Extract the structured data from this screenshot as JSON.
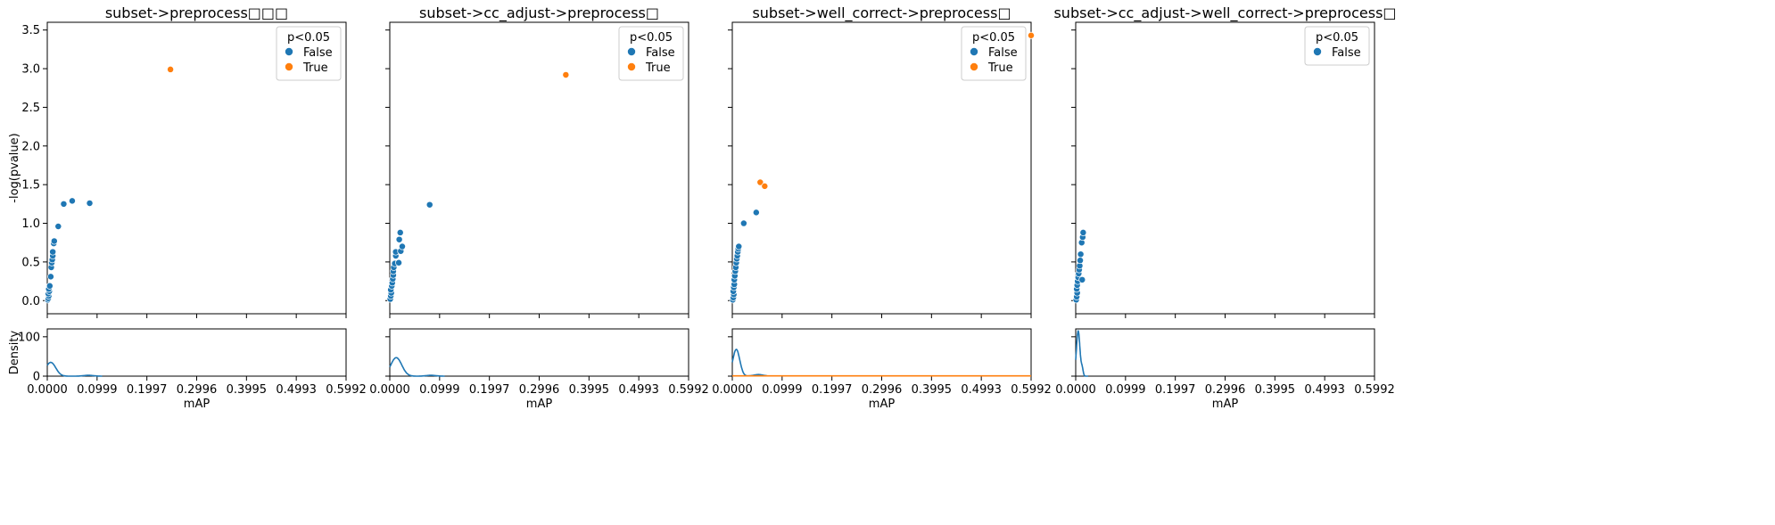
{
  "chart_data": [
    {
      "type": "scatter",
      "title": "subset->preprocess□□□",
      "xlabel": "mAP",
      "ylabel": "-log(pvalue)",
      "xlim": [
        0.0,
        0.5992
      ],
      "ylim": [
        -0.17,
        3.6
      ],
      "xticks": [
        "0.0000",
        "0.0999",
        "0.1997",
        "0.2996",
        "0.3995",
        "0.4993",
        "0.5992"
      ],
      "yticks": [
        "0.0",
        "0.5",
        "1.0",
        "1.5",
        "2.0",
        "2.5",
        "3.0",
        "3.5"
      ],
      "legend": {
        "title": "p<0.05",
        "position": "top-right",
        "entries": [
          {
            "name": "False",
            "color": "#1f77b4"
          },
          {
            "name": "True",
            "color": "#ff7f0e"
          }
        ]
      },
      "series": [
        {
          "name": "False",
          "color": "#1f77b4",
          "points": [
            [
              0.001,
              0.01
            ],
            [
              0.002,
              0.03
            ],
            [
              0.003,
              0.06
            ],
            [
              0.002,
              0.09
            ],
            [
              0.004,
              0.12
            ],
            [
              0.003,
              0.15
            ],
            [
              0.005,
              0.19
            ],
            [
              0.007,
              0.31
            ],
            [
              0.008,
              0.43
            ],
            [
              0.009,
              0.49
            ],
            [
              0.01,
              0.53
            ],
            [
              0.011,
              0.58
            ],
            [
              0.011,
              0.63
            ],
            [
              0.013,
              0.74
            ],
            [
              0.014,
              0.77
            ],
            [
              0.022,
              0.96
            ],
            [
              0.033,
              1.25
            ],
            [
              0.05,
              1.29
            ],
            [
              0.085,
              1.26
            ]
          ]
        },
        {
          "name": "True",
          "color": "#ff7f0e",
          "points": [
            [
              0.247,
              2.99
            ]
          ]
        }
      ],
      "density": {
        "ylabel": "Density",
        "ylim": [
          0,
          120
        ],
        "yticks": [
          "0",
          "100"
        ],
        "curves": [
          {
            "color": "#1f77b4",
            "xmax": 0.11,
            "peak_x": 0.007,
            "peak_y": 35,
            "sigma": 0.01,
            "tail_y": 2
          }
        ]
      }
    },
    {
      "type": "scatter",
      "title": "subset->cc_adjust->preprocess□",
      "xlabel": "mAP",
      "ylabel": "",
      "xlim": [
        0.0,
        0.5992
      ],
      "ylim": [
        -0.17,
        3.6
      ],
      "xticks": [
        "0.0000",
        "0.0999",
        "0.1997",
        "0.2996",
        "0.3995",
        "0.4993",
        "0.5992"
      ],
      "yticks": [],
      "legend": {
        "title": "p<0.05",
        "position": "top-right",
        "entries": [
          {
            "name": "False",
            "color": "#1f77b4"
          },
          {
            "name": "True",
            "color": "#ff7f0e"
          }
        ]
      },
      "series": [
        {
          "name": "False",
          "color": "#1f77b4",
          "points": [
            [
              0.001,
              0.02
            ],
            [
              0.002,
              0.06
            ],
            [
              0.003,
              0.1
            ],
            [
              0.002,
              0.14
            ],
            [
              0.004,
              0.19
            ],
            [
              0.005,
              0.23
            ],
            [
              0.006,
              0.28
            ],
            [
              0.007,
              0.33
            ],
            [
              0.007,
              0.38
            ],
            [
              0.008,
              0.43
            ],
            [
              0.01,
              0.48
            ],
            [
              0.012,
              0.58
            ],
            [
              0.012,
              0.63
            ],
            [
              0.018,
              0.49
            ],
            [
              0.022,
              0.64
            ],
            [
              0.025,
              0.7
            ],
            [
              0.019,
              0.79
            ],
            [
              0.021,
              0.88
            ],
            [
              0.08,
              1.24
            ]
          ]
        },
        {
          "name": "True",
          "color": "#ff7f0e",
          "points": [
            [
              0.353,
              2.92
            ]
          ]
        }
      ],
      "density": {
        "ylabel": "",
        "ylim": [
          0,
          120
        ],
        "yticks": [],
        "curves": [
          {
            "color": "#1f77b4",
            "xmax": 0.11,
            "peak_x": 0.013,
            "peak_y": 47,
            "sigma": 0.011,
            "tail_y": 2
          }
        ]
      }
    },
    {
      "type": "scatter",
      "title": "subset->well_correct->preprocess□",
      "xlabel": "mAP",
      "ylabel": "",
      "xlim": [
        0.0,
        0.5992
      ],
      "ylim": [
        -0.17,
        3.6
      ],
      "xticks": [
        "0.0000",
        "0.0999",
        "0.1997",
        "0.2996",
        "0.3995",
        "0.4993",
        "0.5992"
      ],
      "yticks": [],
      "legend": {
        "title": "p<0.05",
        "position": "top-right",
        "entries": [
          {
            "name": "False",
            "color": "#1f77b4"
          },
          {
            "name": "True",
            "color": "#ff7f0e"
          }
        ]
      },
      "series": [
        {
          "name": "False",
          "color": "#1f77b4",
          "points": [
            [
              0.001,
              0.01
            ],
            [
              0.002,
              0.04
            ],
            [
              0.003,
              0.08
            ],
            [
              0.002,
              0.12
            ],
            [
              0.003,
              0.17
            ],
            [
              0.004,
              0.21
            ],
            [
              0.004,
              0.27
            ],
            [
              0.005,
              0.32
            ],
            [
              0.006,
              0.38
            ],
            [
              0.007,
              0.43
            ],
            [
              0.008,
              0.49
            ],
            [
              0.009,
              0.54
            ],
            [
              0.01,
              0.58
            ],
            [
              0.011,
              0.63
            ],
            [
              0.012,
              0.67
            ],
            [
              0.013,
              0.7
            ],
            [
              0.023,
              1.0
            ],
            [
              0.048,
              1.14
            ]
          ]
        },
        {
          "name": "True",
          "color": "#ff7f0e",
          "points": [
            [
              0.056,
              1.53
            ],
            [
              0.065,
              1.48
            ],
            [
              0.5992,
              3.43
            ]
          ]
        }
      ],
      "density": {
        "ylabel": "",
        "ylim": [
          0,
          120
        ],
        "yticks": [],
        "curves": [
          {
            "color": "#1f77b4",
            "xmax": 0.07,
            "peak_x": 0.008,
            "peak_y": 68,
            "sigma": 0.007,
            "tail_y": 4
          },
          {
            "color": "#ff7f0e",
            "xmax": 0.5992,
            "flat": true
          }
        ]
      }
    },
    {
      "type": "scatter",
      "title": "subset->cc_adjust->well_correct->preprocess□",
      "xlabel": "mAP",
      "ylabel": "",
      "xlim": [
        0.0,
        0.5992
      ],
      "ylim": [
        -0.17,
        3.6
      ],
      "xticks": [
        "0.0000",
        "0.0999",
        "0.1997",
        "0.2996",
        "0.3995",
        "0.4993",
        "0.5992"
      ],
      "yticks": [],
      "legend": {
        "title": "p<0.05",
        "position": "top-right",
        "entries": [
          {
            "name": "False",
            "color": "#1f77b4"
          }
        ]
      },
      "series": [
        {
          "name": "False",
          "color": "#1f77b4",
          "points": [
            [
              0.001,
              0.01
            ],
            [
              0.002,
              0.05
            ],
            [
              0.003,
              0.1
            ],
            [
              0.002,
              0.15
            ],
            [
              0.003,
              0.2
            ],
            [
              0.004,
              0.25
            ],
            [
              0.005,
              0.3
            ],
            [
              0.006,
              0.35
            ],
            [
              0.007,
              0.4
            ],
            [
              0.008,
              0.45
            ],
            [
              0.009,
              0.52
            ],
            [
              0.01,
              0.6
            ],
            [
              0.012,
              0.75
            ],
            [
              0.014,
              0.82
            ],
            [
              0.015,
              0.88
            ],
            [
              0.013,
              0.27
            ]
          ]
        }
      ],
      "density": {
        "ylabel": "",
        "ylim": [
          0,
          120
        ],
        "yticks": [],
        "curves": [
          {
            "color": "#1f77b4",
            "xmax": 0.025,
            "peak_x": 0.005,
            "peak_y": 115,
            "sigma": 0.0035,
            "tail_y": 0,
            "shoulder": true
          }
        ]
      }
    }
  ]
}
